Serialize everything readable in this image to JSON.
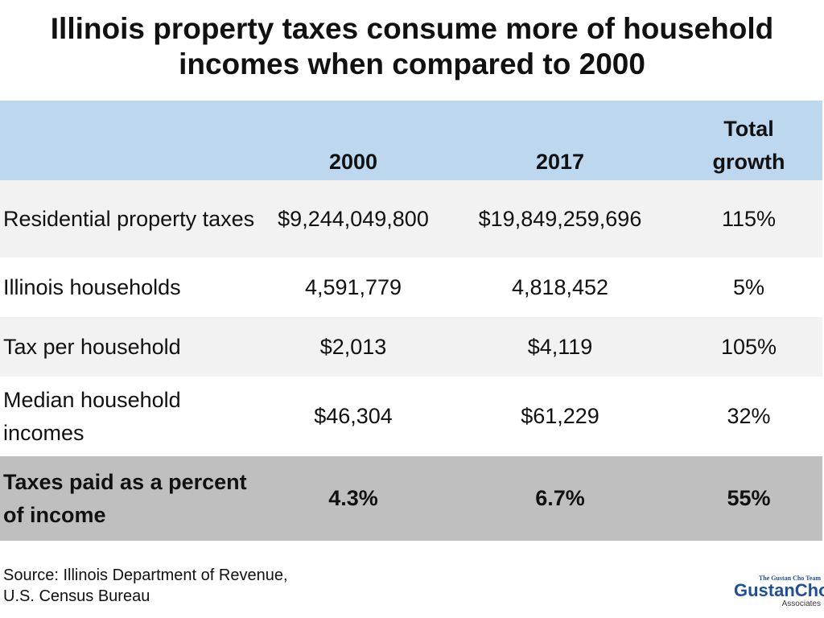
{
  "title_lines": [
    "Illinois property taxes consume more of household",
    "incomes when compared to 2000"
  ],
  "table": {
    "header": [
      "2000",
      "2017",
      "Total growth"
    ],
    "rows": [
      [
        "Residential property taxes",
        "$9,244,049,800",
        "$19,849,259,696",
        "115%"
      ],
      [
        "Illinois households",
        "4,591,779",
        "4,818,452",
        "5%"
      ],
      [
        "Tax per household",
        "$2,013",
        "$4,119",
        "105%"
      ],
      [
        "Median household incomes",
        "$46,304",
        "$61,229",
        "32%"
      ],
      [
        "Taxes paid as a percent of income",
        "4.3%",
        "6.7%",
        "55%"
      ]
    ]
  },
  "source_lines": [
    "Source: Illinois Department of Revenue,",
    "U.S. Census Bureau"
  ],
  "logo": {
    "tagline": "The Gustan Cho Team",
    "name": "GustanCho",
    "sub": "Associates"
  }
}
